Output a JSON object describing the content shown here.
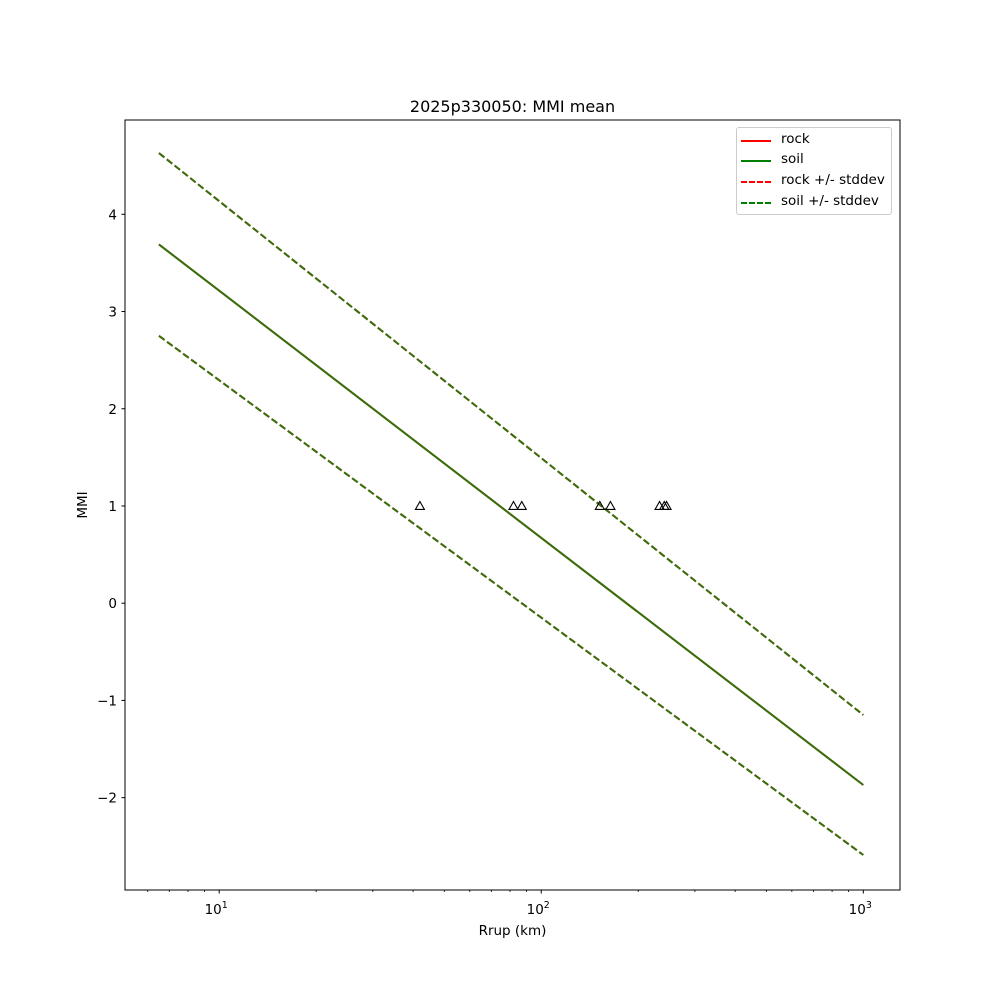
{
  "chart_data": {
    "type": "line",
    "title": "2025p330050: MMI mean",
    "xlabel": "Rrup (km)",
    "ylabel": "MMI",
    "xscale": "log",
    "xlim": [
      5.1,
      1300
    ],
    "ylim": [
      -2.95,
      4.97
    ],
    "x_ticks": [
      {
        "value": 10,
        "base": "10",
        "exp": "1"
      },
      {
        "value": 100,
        "base": "10",
        "exp": "2"
      },
      {
        "value": 1000,
        "base": "10",
        "exp": "3"
      }
    ],
    "y_ticks": [
      {
        "value": -2,
        "label": "−2"
      },
      {
        "value": -1,
        "label": "−1"
      },
      {
        "value": 0,
        "label": "0"
      },
      {
        "value": 1,
        "label": "1"
      },
      {
        "value": 2,
        "label": "2"
      },
      {
        "value": 3,
        "label": "3"
      },
      {
        "value": 4,
        "label": "4"
      }
    ],
    "grid": false,
    "legend_position": "top-right",
    "series": [
      {
        "name": "rock",
        "style": "solid",
        "color": "#ff0000",
        "x": [
          6.5,
          1000
        ],
        "y": [
          3.69,
          -1.87
        ]
      },
      {
        "name": "soil",
        "style": "solid",
        "color": "#008000",
        "x": [
          6.5,
          1000
        ],
        "y": [
          3.69,
          -1.87
        ]
      },
      {
        "name": "rock +/- stddev",
        "style": "dashed",
        "color": "#ff0000",
        "x": [
          6.5,
          1000
        ],
        "y": [
          4.63,
          -1.15
        ],
        "y2": [
          2.75,
          -2.59
        ]
      },
      {
        "name": "soil +/- stddev",
        "style": "dashed",
        "color": "#008000",
        "x": [
          6.5,
          1000
        ],
        "y": [
          4.63,
          -1.15
        ],
        "y2": [
          2.75,
          -2.59
        ]
      }
    ],
    "scatter": {
      "marker": "triangle",
      "x": [
        42,
        82,
        87,
        152,
        164,
        233,
        241,
        245
      ],
      "y": [
        1,
        1,
        1,
        1,
        1,
        1,
        1,
        1
      ]
    }
  }
}
